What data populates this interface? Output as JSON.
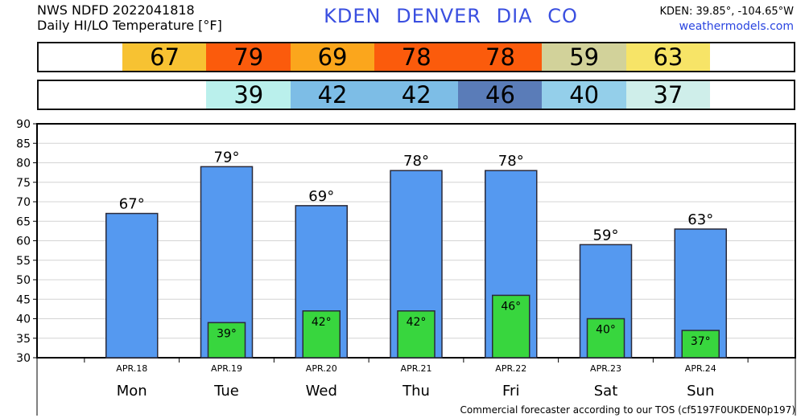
{
  "header": {
    "source": "NWS NDFD 2022041818",
    "subtitle": "Daily HI/LO Temperature [°F]",
    "station_title": "KDEN DENVER DIA CO",
    "coords": "KDEN: 39.85°, -104.65°W",
    "site": "weathermodels.com"
  },
  "hi_strip": [
    {
      "label": "",
      "color": "#ffffff"
    },
    {
      "label": "67",
      "color": "#f7c232"
    },
    {
      "label": "79",
      "color": "#fb5b0c"
    },
    {
      "label": "69",
      "color": "#fba61c"
    },
    {
      "label": "78",
      "color": "#fb5b0c"
    },
    {
      "label": "78",
      "color": "#fb5b0c"
    },
    {
      "label": "59",
      "color": "#d2d29a"
    },
    {
      "label": "63",
      "color": "#f7e467"
    },
    {
      "label": "",
      "color": "#ffffff"
    }
  ],
  "lo_strip": [
    {
      "label": "",
      "color": "#ffffff"
    },
    {
      "label": "",
      "color": "#ffffff"
    },
    {
      "label": "39",
      "color": "#baf0ec"
    },
    {
      "label": "42",
      "color": "#7dbde6"
    },
    {
      "label": "42",
      "color": "#7dbde6"
    },
    {
      "label": "46",
      "color": "#5a7cb8"
    },
    {
      "label": "40",
      "color": "#94cfea"
    },
    {
      "label": "37",
      "color": "#cfeeea"
    },
    {
      "label": "",
      "color": "#ffffff"
    }
  ],
  "chart_data": {
    "type": "bar",
    "categories": [
      "APR.18",
      "APR.19",
      "APR.20",
      "APR.21",
      "APR.22",
      "APR.23",
      "APR.24"
    ],
    "day_names": [
      "Mon",
      "Tue",
      "Wed",
      "Thu",
      "Fri",
      "Sat",
      "Sun"
    ],
    "series": [
      {
        "values": [
          67,
          79,
          69,
          78,
          78,
          59,
          63
        ],
        "color": "#5599f0"
      },
      {
        "values": [
          null,
          39,
          42,
          42,
          46,
          40,
          37
        ],
        "color": "#38d63e"
      }
    ],
    "hi_labels": [
      "67°",
      "79°",
      "69°",
      "78°",
      "78°",
      "59°",
      "63°"
    ],
    "lo_labels": [
      "",
      "39°",
      "42°",
      "42°",
      "46°",
      "40°",
      "37°"
    ],
    "ylim": [
      30,
      90
    ],
    "yticks": [
      30,
      35,
      40,
      45,
      50,
      55,
      60,
      65,
      70,
      75,
      80,
      85,
      90
    ],
    "ytick_labels": [
      "30",
      "35",
      "40",
      "45",
      "50",
      "55",
      "60",
      "65",
      "70",
      "75",
      "80",
      "85",
      "90"
    ],
    "grid": true,
    "title": "",
    "xlabel": "",
    "ylabel": ""
  },
  "footer": "Commercial forecaster according to our TOS (cf5197F0UKDEN0p197)"
}
